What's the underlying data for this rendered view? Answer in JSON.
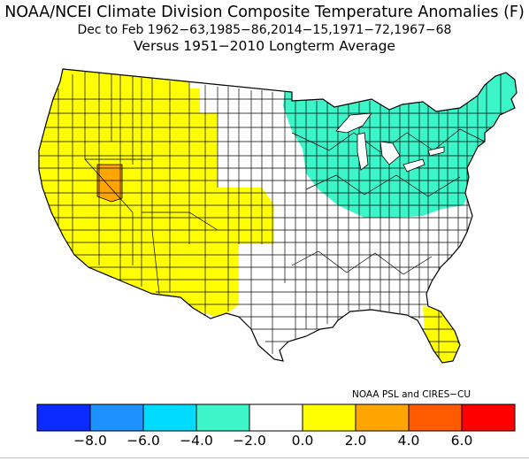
{
  "title": {
    "line1": "NOAA/NCEI Climate Division Composite Temperature Anomalies (F)",
    "line2": "Dec to Feb  1962−63,1985−86,2014−15,1971−72,1967−68",
    "line3": "Versus 1951−2010 Longterm Average"
  },
  "credit": "NOAA PSL and CIRES−CU",
  "legend": {
    "colors": [
      "#0a2aff",
      "#1e90ff",
      "#00dcff",
      "#3cf5c8",
      "#ffffff",
      "#ffff00",
      "#ffa500",
      "#ff5a00",
      "#ff0000"
    ],
    "tick_labels": [
      "−8.0",
      "−6.0",
      "−4.0",
      "−2.0",
      "0.0",
      "2.0",
      "4.0",
      "6.0"
    ]
  },
  "regions": [
    {
      "name": "West",
      "anomaly_bin": "0.0 to 2.0",
      "color": "#ffff00"
    },
    {
      "name": "Central Nevada",
      "anomaly_bin": "2.0 to 4.0",
      "color": "#ffa500"
    },
    {
      "name": "Upper Midwest and Northeast",
      "anomaly_bin": "−4.0 to −2.0",
      "color": "#3cf5c8"
    },
    {
      "name": "South Florida",
      "anomaly_bin": "0.0 to 2.0",
      "color": "#ffff00"
    },
    {
      "name": "Remainder",
      "anomaly_bin": "−2.0 to 0.0",
      "color": "#ffffff"
    }
  ]
}
